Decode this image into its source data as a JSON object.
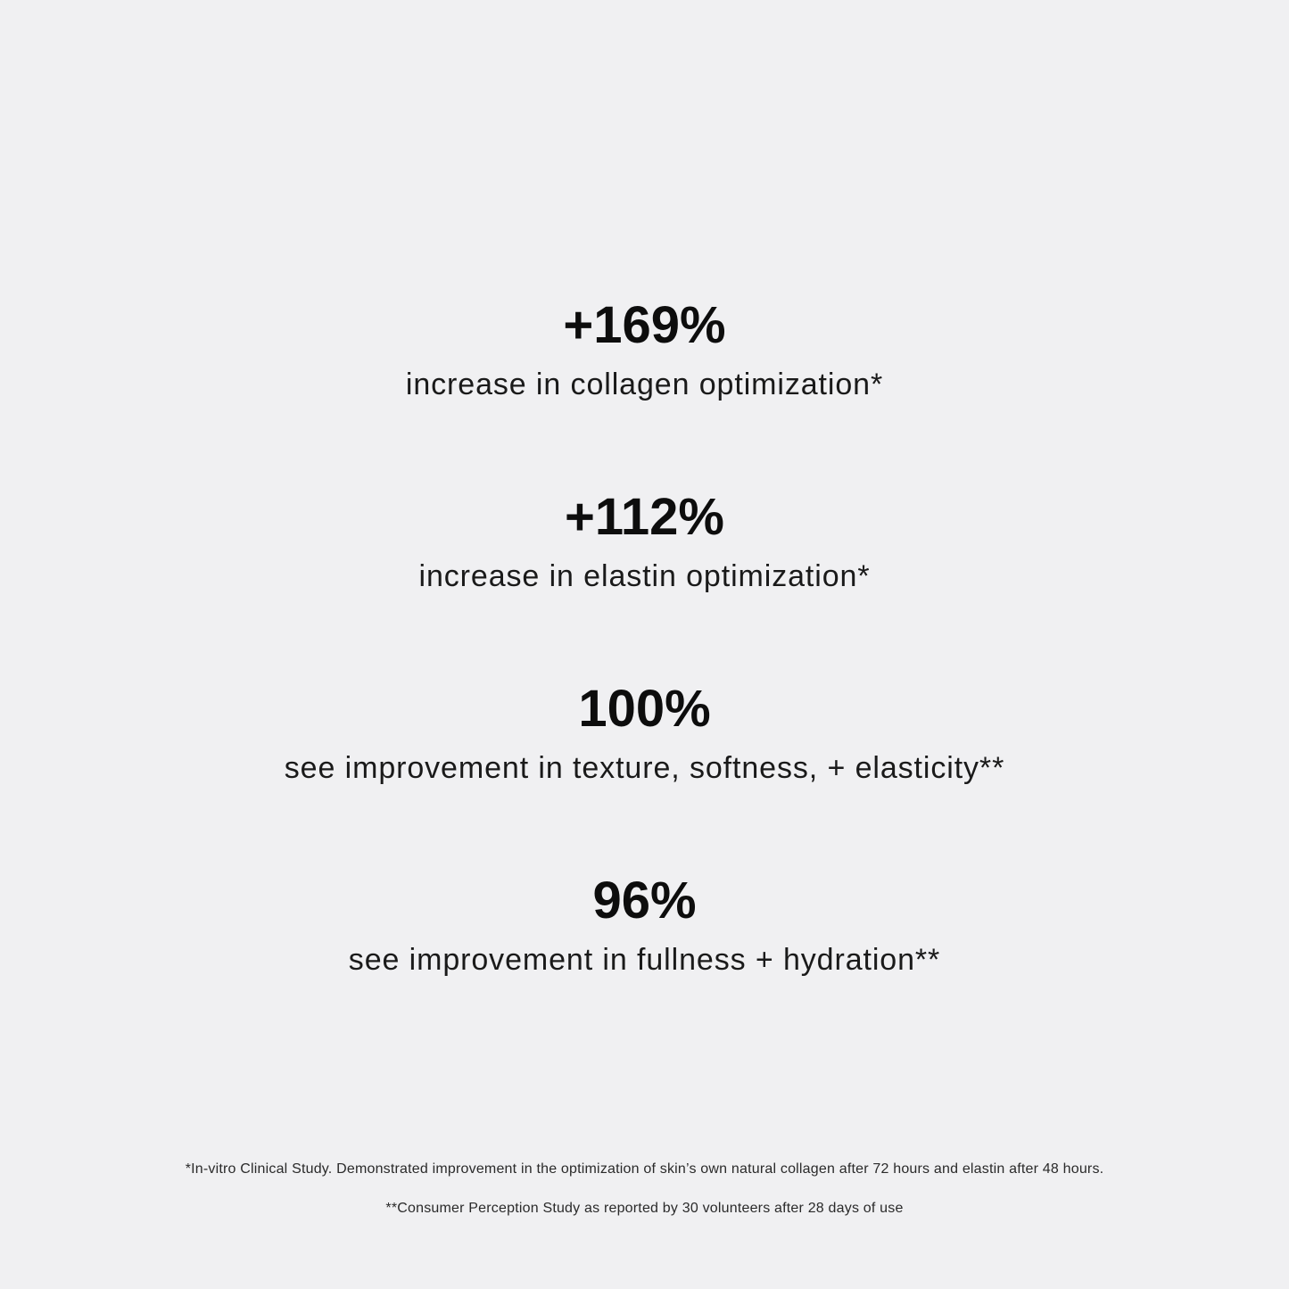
{
  "stats": [
    {
      "value": "+169%",
      "description": "increase in collagen optimization*"
    },
    {
      "value": "+112%",
      "description": "increase in elastin optimization*"
    },
    {
      "value": "100%",
      "description": "see improvement in texture, softness, + elasticity**"
    },
    {
      "value": "96%",
      "description": "see improvement in fullness + hydration**"
    }
  ],
  "footnotes": [
    "*In-vitro Clinical Study. Demonstrated improvement in the optimization of skin’s own natural collagen after 72 hours and elastin after 48 hours.",
    "**Consumer Perception Study as reported by 30 volunteers after 28 days of use"
  ],
  "colors": {
    "background": "#f0f0f2",
    "text": "#111111"
  }
}
